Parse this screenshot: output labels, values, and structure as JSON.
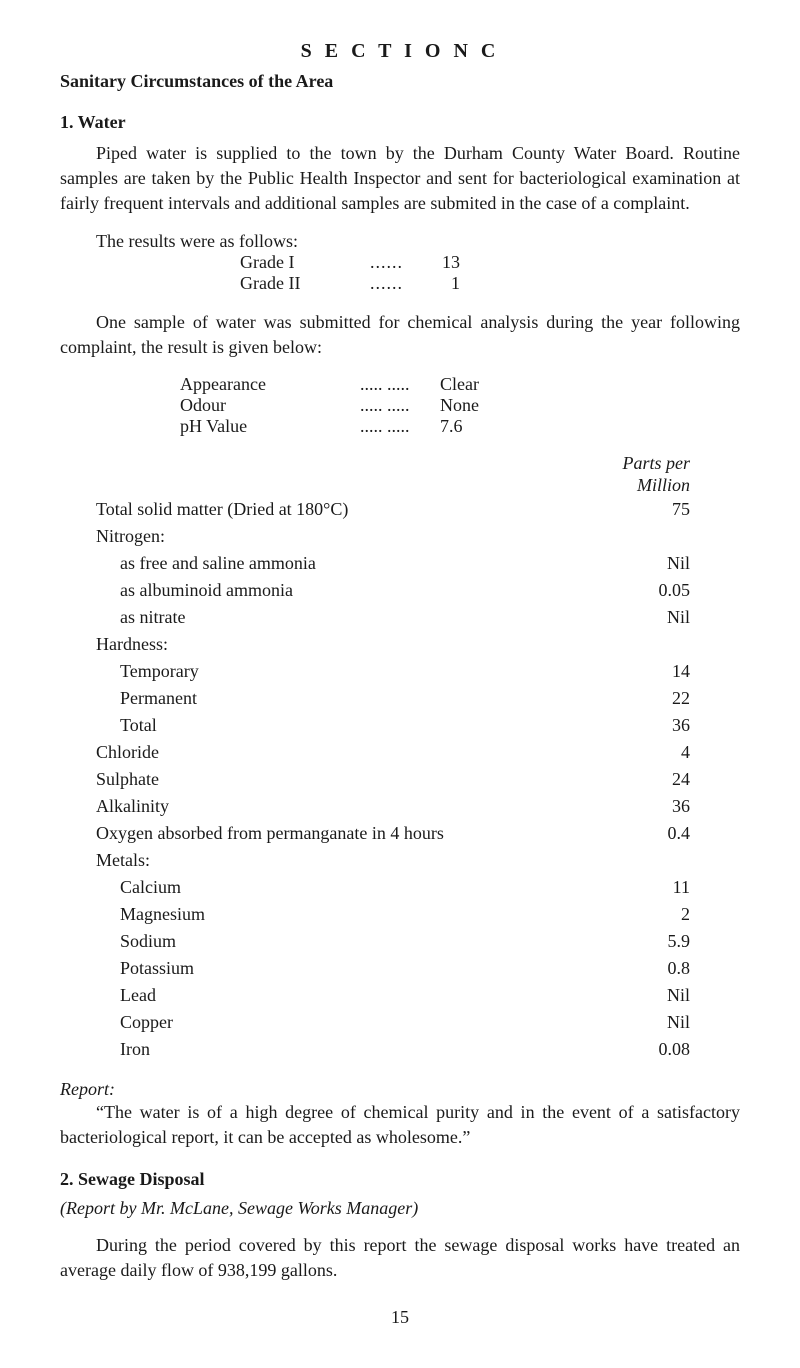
{
  "section_title": "S E C T I O N  C",
  "subtitle": "Sanitary Circumstances of the Area",
  "water": {
    "heading": "1. Water",
    "para": "Piped water is supplied to the town by the Durham County Water Board. Routine samples are taken by the Public Health Inspector and sent for bacteriological examination at fairly frequent intervals and additional samples are submited in the case of a complaint.",
    "results_intro": "The results were as follows:",
    "grades": [
      {
        "label": "Grade I",
        "value": "13"
      },
      {
        "label": "Grade II",
        "value": "1"
      }
    ],
    "sample_para": "One sample of water was submitted for chemical analysis during the year following complaint, the result is given below:",
    "analysis": [
      {
        "label": "Appearance",
        "value": "Clear"
      },
      {
        "label": "Odour",
        "value": "None"
      },
      {
        "label": "pH Value",
        "value": "7.6"
      }
    ],
    "ppm_header1": "Parts per",
    "ppm_header2": "Million",
    "measurements": [
      {
        "label": "Total solid matter (Dried at 180°C)",
        "value": "75",
        "indent": 1
      },
      {
        "label": "Nitrogen:",
        "value": "",
        "indent": 1
      },
      {
        "label": "as free and saline ammonia",
        "value": "Nil",
        "indent": 2
      },
      {
        "label": "as albuminoid ammonia",
        "value": "0.05",
        "indent": 2
      },
      {
        "label": "as nitrate",
        "value": "Nil",
        "indent": 2
      },
      {
        "label": "Hardness:",
        "value": "",
        "indent": 1
      },
      {
        "label": "Temporary",
        "value": "14",
        "indent": 2
      },
      {
        "label": "Permanent",
        "value": "22",
        "indent": 2
      },
      {
        "label": "Total",
        "value": "36",
        "indent": 2
      },
      {
        "label": "Chloride",
        "value": "4",
        "indent": 1
      },
      {
        "label": "Sulphate",
        "value": "24",
        "indent": 1
      },
      {
        "label": "Alkalinity",
        "value": "36",
        "indent": 1
      },
      {
        "label": "Oxygen absorbed from permanganate in 4 hours",
        "value": "0.4",
        "indent": 1
      },
      {
        "label": "Metals:",
        "value": "",
        "indent": 1
      },
      {
        "label": "Calcium",
        "value": "11",
        "indent": 2
      },
      {
        "label": "Magnesium",
        "value": "2",
        "indent": 2
      },
      {
        "label": "Sodium",
        "value": "5.9",
        "indent": 2
      },
      {
        "label": "Potassium",
        "value": "0.8",
        "indent": 2
      },
      {
        "label": "Lead",
        "value": "Nil",
        "indent": 2
      },
      {
        "label": "Copper",
        "value": "Nil",
        "indent": 2
      },
      {
        "label": "Iron",
        "value": "0.08",
        "indent": 2
      }
    ],
    "report_heading": "Report:",
    "report_para": "“The water is of a high degree of chemical purity and in the event of a satisfactory bacteriological report, it can be accepted as wholesome.”"
  },
  "sewage": {
    "heading": "2. Sewage Disposal",
    "subheading": "(Report by Mr. McLane, Sewage Works Manager)",
    "para": "During the period covered by this report the sewage disposal works have treated an average daily flow of 938,199 gallons."
  },
  "page_number": "15"
}
